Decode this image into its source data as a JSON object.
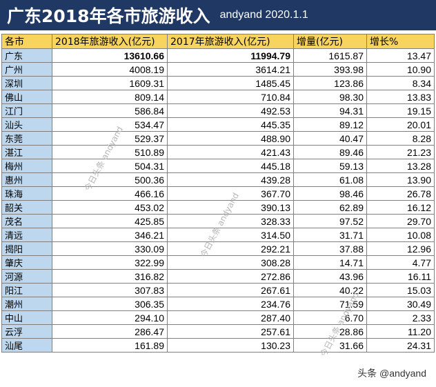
{
  "title": {
    "main": "广东2018年各市旅游收入",
    "sub": "andyand  2020.1.1"
  },
  "table": {
    "headers": [
      "各市",
      "2018年旅游收入(亿元)",
      "2017年旅游收入(亿元)",
      "增量(亿元)",
      "增长%"
    ],
    "rows": [
      [
        "广东",
        "13610.66",
        "11994.79",
        "1615.87",
        "13.47"
      ],
      [
        "广州",
        "4008.19",
        "3614.21",
        "393.98",
        "10.90"
      ],
      [
        "深圳",
        "1609.31",
        "1485.45",
        "123.86",
        "8.34"
      ],
      [
        "佛山",
        "809.14",
        "710.84",
        "98.30",
        "13.83"
      ],
      [
        "江门",
        "586.84",
        "492.53",
        "94.31",
        "19.15"
      ],
      [
        "汕头",
        "534.47",
        "445.35",
        "89.12",
        "20.01"
      ],
      [
        "东莞",
        "529.37",
        "488.90",
        "40.47",
        "8.28"
      ],
      [
        "湛江",
        "510.89",
        "421.43",
        "89.46",
        "21.23"
      ],
      [
        "梅州",
        "504.31",
        "445.18",
        "59.13",
        "13.28"
      ],
      [
        "惠州",
        "500.36",
        "439.28",
        "61.08",
        "13.90"
      ],
      [
        "珠海",
        "466.16",
        "367.70",
        "98.46",
        "26.78"
      ],
      [
        "韶关",
        "453.02",
        "390.13",
        "62.89",
        "16.12"
      ],
      [
        "茂名",
        "425.85",
        "328.33",
        "97.52",
        "29.70"
      ],
      [
        "清远",
        "346.21",
        "314.50",
        "31.71",
        "10.08"
      ],
      [
        "揭阳",
        "330.09",
        "292.21",
        "37.88",
        "12.96"
      ],
      [
        "肇庆",
        "322.99",
        "308.28",
        "14.71",
        "4.77"
      ],
      [
        "河源",
        "316.82",
        "272.86",
        "43.96",
        "16.11"
      ],
      [
        "阳江",
        "307.83",
        "267.61",
        "40.22",
        "15.03"
      ],
      [
        "潮州",
        "306.35",
        "234.76",
        "71.59",
        "30.49"
      ],
      [
        "中山",
        "294.10",
        "287.40",
        "6.70",
        "2.33"
      ],
      [
        "云浮",
        "286.47",
        "257.61",
        "28.86",
        "11.20"
      ],
      [
        "汕尾",
        "161.89",
        "130.23",
        "31.66",
        "24.31"
      ]
    ]
  },
  "watermarks": {
    "diagonal": "今日头条 andyand",
    "bottom": "头条 @andyand"
  },
  "colors": {
    "title_bg": "#1f3864",
    "header_bg": "#f6d45e",
    "city_bg": "#bdd7ee"
  }
}
